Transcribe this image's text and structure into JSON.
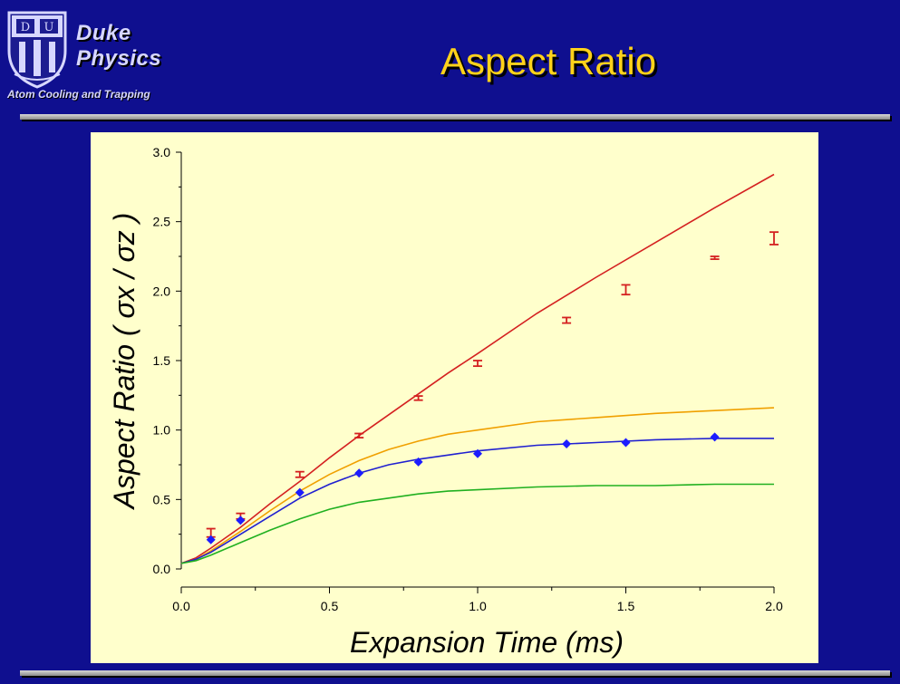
{
  "header": {
    "brand_line1": "Duke",
    "brand_line2": "Physics",
    "brand_subtitle": "Atom Cooling and Trapping",
    "title": "Aspect Ratio",
    "logo_icon": "duke-chapel-shield-icon"
  },
  "colors": {
    "background": "#0f0f8f",
    "title": "#ffd21a",
    "plot_area": "#ffffcc"
  },
  "chart_data": {
    "type": "scatter",
    "title": "",
    "xlabel": "Expansion Time (ms)",
    "ylabel": "Aspect Ratio ( σx / σz )",
    "xlim": [
      0,
      2.0
    ],
    "ylim": [
      0,
      3.0
    ],
    "grid": false,
    "x_ticks": [
      "0.0",
      "0.5",
      "1.0",
      "1.5",
      "2.0"
    ],
    "y_ticks": [
      "0.0",
      "0.5",
      "1.0",
      "1.5",
      "2.0",
      "2.5",
      "3.0"
    ],
    "series": [
      {
        "kind": "points_with_error_bars",
        "color": "#d42020",
        "points": [
          {
            "x": 0.1,
            "y": 0.26,
            "err": 0.03
          },
          {
            "x": 0.2,
            "y": 0.38,
            "err": 0.02
          },
          {
            "x": 0.4,
            "y": 0.68,
            "err": 0.02
          },
          {
            "x": 0.6,
            "y": 0.96,
            "err": 0.015
          },
          {
            "x": 0.8,
            "y": 1.23,
            "err": 0.015
          },
          {
            "x": 1.0,
            "y": 1.48,
            "err": 0.02
          },
          {
            "x": 1.3,
            "y": 1.79,
            "err": 0.02
          },
          {
            "x": 1.5,
            "y": 2.01,
            "err": 0.035
          },
          {
            "x": 1.8,
            "y": 2.24,
            "err": 0.01
          },
          {
            "x": 2.0,
            "y": 2.38,
            "err": 0.045
          }
        ]
      },
      {
        "kind": "points",
        "marker": "diamond",
        "color": "#1c1cff",
        "points": [
          {
            "x": 0.1,
            "y": 0.21
          },
          {
            "x": 0.2,
            "y": 0.35
          },
          {
            "x": 0.4,
            "y": 0.55
          },
          {
            "x": 0.6,
            "y": 0.69
          },
          {
            "x": 0.8,
            "y": 0.77
          },
          {
            "x": 1.0,
            "y": 0.83
          },
          {
            "x": 1.3,
            "y": 0.9
          },
          {
            "x": 1.5,
            "y": 0.91
          },
          {
            "x": 1.8,
            "y": 0.95
          }
        ]
      },
      {
        "kind": "curve",
        "color": "#d42020",
        "x": [
          0,
          0.05,
          0.1,
          0.2,
          0.3,
          0.4,
          0.5,
          0.6,
          0.7,
          0.8,
          0.9,
          1.0,
          1.2,
          1.4,
          1.6,
          1.8,
          2.0
        ],
        "y": [
          0.04,
          0.08,
          0.15,
          0.3,
          0.47,
          0.63,
          0.8,
          0.96,
          1.11,
          1.26,
          1.41,
          1.55,
          1.84,
          2.1,
          2.35,
          2.6,
          2.84
        ]
      },
      {
        "kind": "curve",
        "color": "#f0a000",
        "x": [
          0,
          0.05,
          0.1,
          0.2,
          0.3,
          0.4,
          0.5,
          0.6,
          0.7,
          0.8,
          0.9,
          1.0,
          1.2,
          1.4,
          1.6,
          1.8,
          2.0
        ],
        "y": [
          0.04,
          0.07,
          0.13,
          0.27,
          0.42,
          0.56,
          0.68,
          0.78,
          0.86,
          0.92,
          0.97,
          1.0,
          1.06,
          1.09,
          1.12,
          1.14,
          1.16
        ]
      },
      {
        "kind": "curve",
        "color": "#2020d0",
        "x": [
          0,
          0.05,
          0.1,
          0.2,
          0.3,
          0.4,
          0.5,
          0.6,
          0.7,
          0.8,
          0.9,
          1.0,
          1.2,
          1.4,
          1.6,
          1.8,
          2.0
        ],
        "y": [
          0.04,
          0.07,
          0.12,
          0.25,
          0.38,
          0.51,
          0.61,
          0.69,
          0.75,
          0.79,
          0.82,
          0.85,
          0.89,
          0.91,
          0.93,
          0.94,
          0.94
        ]
      },
      {
        "kind": "curve",
        "color": "#20b020",
        "x": [
          0,
          0.05,
          0.1,
          0.2,
          0.3,
          0.4,
          0.5,
          0.6,
          0.7,
          0.8,
          0.9,
          1.0,
          1.2,
          1.4,
          1.6,
          1.8,
          2.0
        ],
        "y": [
          0.04,
          0.06,
          0.1,
          0.19,
          0.28,
          0.36,
          0.43,
          0.48,
          0.51,
          0.54,
          0.56,
          0.57,
          0.59,
          0.6,
          0.6,
          0.61,
          0.61
        ]
      }
    ]
  }
}
